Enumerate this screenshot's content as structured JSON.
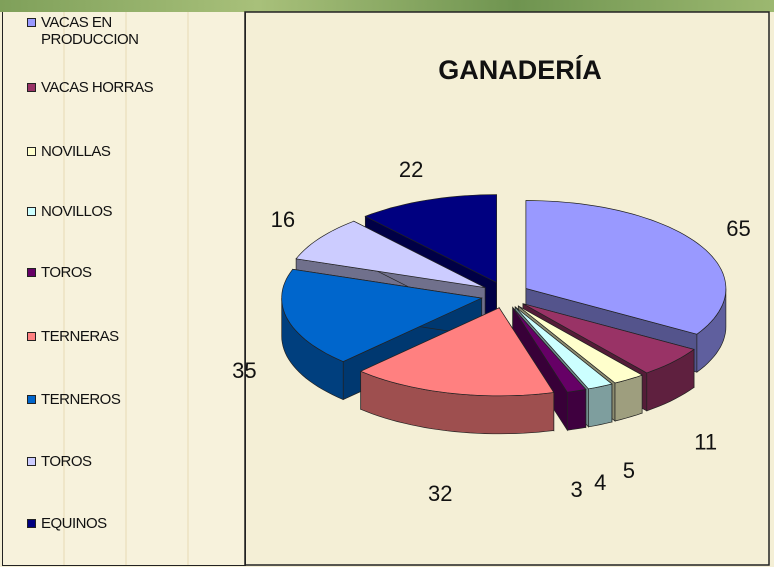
{
  "chart_data": {
    "type": "pie",
    "title": "GANADERÍA",
    "categories": [
      "VACAS EN PRODUCCION",
      "VACAS HORRAS",
      "NOVILLAS",
      "NOVILLOS",
      "TOROS",
      "TERNERAS",
      "TERNEROS",
      "TOROS",
      "EQUINOS"
    ],
    "values": [
      65,
      11,
      5,
      4,
      3,
      32,
      35,
      16,
      22
    ],
    "colors": [
      "#9999ff",
      "#993366",
      "#ffffcc",
      "#ccffff",
      "#660066",
      "#ff8080",
      "#0066cc",
      "#ccccff",
      "#000080"
    ],
    "legend": "left"
  }
}
